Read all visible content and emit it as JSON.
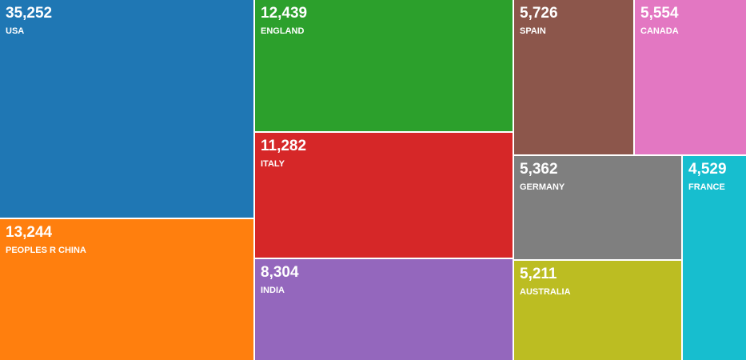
{
  "chart_data": {
    "type": "treemap",
    "title": "",
    "items": [
      {
        "name": "USA",
        "value": 35252,
        "value_label": "35,252",
        "color": "#1f77b4"
      },
      {
        "name": "PEOPLES R CHINA",
        "value": 13244,
        "value_label": "13,244",
        "color": "#ff7f0e"
      },
      {
        "name": "ENGLAND",
        "value": 12439,
        "value_label": "12,439",
        "color": "#2ca02c"
      },
      {
        "name": "ITALY",
        "value": 11282,
        "value_label": "11,282",
        "color": "#d62728"
      },
      {
        "name": "INDIA",
        "value": 8304,
        "value_label": "8,304",
        "color": "#9467bd"
      },
      {
        "name": "SPAIN",
        "value": 5726,
        "value_label": "5,726",
        "color": "#8c564b"
      },
      {
        "name": "CANADA",
        "value": 5554,
        "value_label": "5,554",
        "color": "#e377c2"
      },
      {
        "name": "GERMANY",
        "value": 5362,
        "value_label": "5,362",
        "color": "#7f7f7f"
      },
      {
        "name": "AUSTRALIA",
        "value": 5211,
        "value_label": "5,211",
        "color": "#bcbd22"
      },
      {
        "name": "FRANCE",
        "value": 4529,
        "value_label": "4,529",
        "color": "#17becf"
      }
    ]
  }
}
